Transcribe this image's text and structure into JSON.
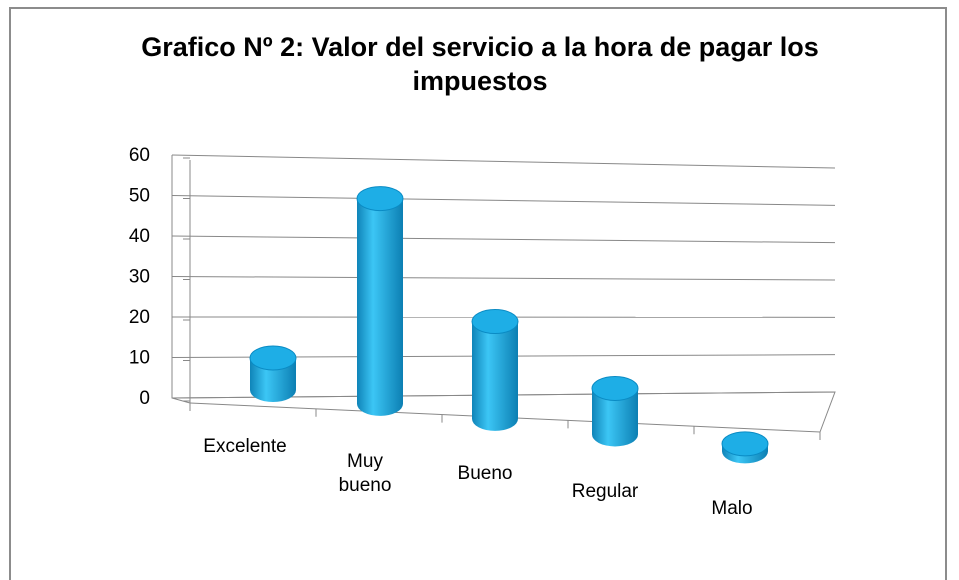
{
  "chart_data": {
    "type": "bar3d",
    "title": "Grafico Nº 2: Valor del servicio a la hora  de pagar los impuestos",
    "categories": [
      "Excelente",
      "Muy bueno",
      "Bueno",
      "Regular",
      "Malo"
    ],
    "values": [
      8,
      52,
      25,
      12,
      2
    ],
    "color": "#1eaee6",
    "ylim": [
      0,
      60
    ],
    "yticks": [
      0,
      10,
      20,
      30,
      40,
      50,
      60
    ],
    "grid": true
  }
}
